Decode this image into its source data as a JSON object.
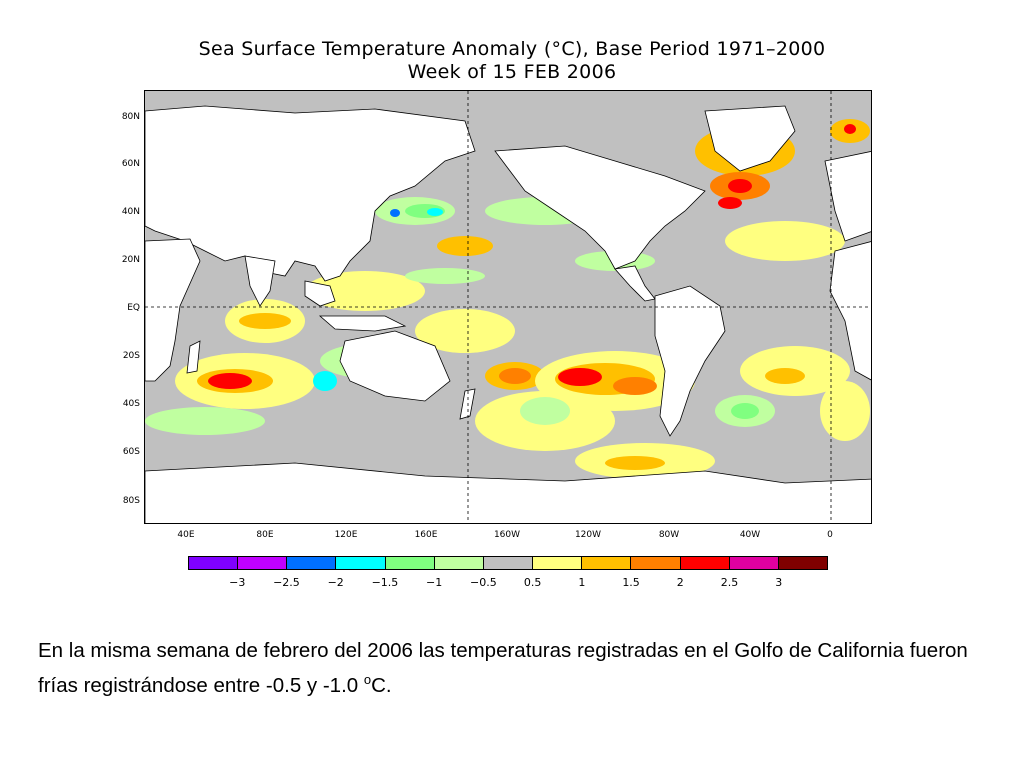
{
  "title_line1": "Sea Surface Temperature Anomaly (°C), Base Period 1971–2000",
  "title_line2": "Week of 15 FEB 2006",
  "lat_labels": [
    "80N",
    "60N",
    "40N",
    "20N",
    "EQ",
    "20S",
    "40S",
    "60S",
    "80S"
  ],
  "lon_labels": [
    "40E",
    "80E",
    "120E",
    "160E",
    "160W",
    "120W",
    "80W",
    "40W",
    "0"
  ],
  "colorbar": {
    "colors": [
      "#7f00ff",
      "#c000ff",
      "#0070ff",
      "#00ffff",
      "#80ff80",
      "#c0ffa0",
      "#c0c0c0",
      "#ffff80",
      "#ffc000",
      "#ff8000",
      "#ff0000",
      "#e000a0",
      "#800000"
    ],
    "labels": [
      "−3",
      "−2.5",
      "−2",
      "−1.5",
      "−1",
      "−0.5",
      "0.5",
      "1",
      "1.5",
      "2",
      "2.5",
      "3"
    ]
  },
  "caption": {
    "text_before_sup": "En la misma semana de febrero del 2006 las temperaturas registradas en el Golfo de California fueron frías registrándose entre -0.5 y -1.0 ",
    "sup": "o",
    "text_after_sup": "C."
  }
}
